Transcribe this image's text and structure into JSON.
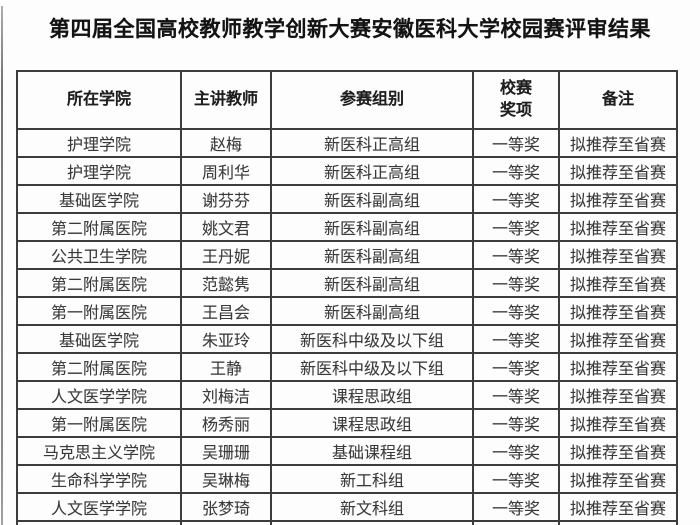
{
  "page": {
    "title": "第四届全国高校教师教学创新大赛安徽医科大学校园赛评审结果"
  },
  "colors": {
    "border": "#3c3c3c",
    "body_text": "#3a3a3a",
    "title_text": "#131313",
    "background": "#fdfdfd"
  },
  "table": {
    "headers": {
      "college": "所在学院",
      "teacher": "主讲教师",
      "group": "参赛组别",
      "award": "校赛\n奖项",
      "note": "备注"
    },
    "rows": [
      {
        "college": "护理学院",
        "teacher": "赵梅",
        "group": "新医科正高组",
        "award": "一等奖",
        "note": "拟推荐至省赛"
      },
      {
        "college": "护理学院",
        "teacher": "周利华",
        "group": "新医科正高组",
        "award": "一等奖",
        "note": "拟推荐至省赛"
      },
      {
        "college": "基础医学院",
        "teacher": "谢芬芬",
        "group": "新医科副高组",
        "award": "一等奖",
        "note": "拟推荐至省赛"
      },
      {
        "college": "第二附属医院",
        "teacher": "姚文君",
        "group": "新医科副高组",
        "award": "一等奖",
        "note": "拟推荐至省赛"
      },
      {
        "college": "公共卫生学院",
        "teacher": "王丹妮",
        "group": "新医科副高组",
        "award": "一等奖",
        "note": "拟推荐至省赛"
      },
      {
        "college": "第二附属医院",
        "teacher": "范懿隽",
        "group": "新医科副高组",
        "award": "一等奖",
        "note": "拟推荐至省赛"
      },
      {
        "college": "第一附属医院",
        "teacher": "王昌会",
        "group": "新医科副高组",
        "award": "一等奖",
        "note": "拟推荐至省赛"
      },
      {
        "college": "基础医学院",
        "teacher": "朱亚玲",
        "group": "新医科中级及以下组",
        "award": "一等奖",
        "note": "拟推荐至省赛"
      },
      {
        "college": "第二附属医院",
        "teacher": "王静",
        "group": "新医科中级及以下组",
        "award": "一等奖",
        "note": "拟推荐至省赛"
      },
      {
        "college": "人文医学学院",
        "teacher": "刘梅洁",
        "group": "课程思政组",
        "award": "一等奖",
        "note": "拟推荐至省赛"
      },
      {
        "college": "第一附属医院",
        "teacher": "杨秀丽",
        "group": "课程思政组",
        "award": "一等奖",
        "note": "拟推荐至省赛"
      },
      {
        "college": "马克思主义学院",
        "teacher": "吴珊珊",
        "group": "基础课程组",
        "award": "一等奖",
        "note": "拟推荐至省赛"
      },
      {
        "college": "生命科学学院",
        "teacher": "吴琳梅",
        "group": "新工科组",
        "award": "一等奖",
        "note": "拟推荐至省赛"
      },
      {
        "college": "人文医学学院",
        "teacher": "张梦琦",
        "group": "新文科组",
        "award": "一等奖",
        "note": "拟推荐至省赛"
      }
    ]
  }
}
